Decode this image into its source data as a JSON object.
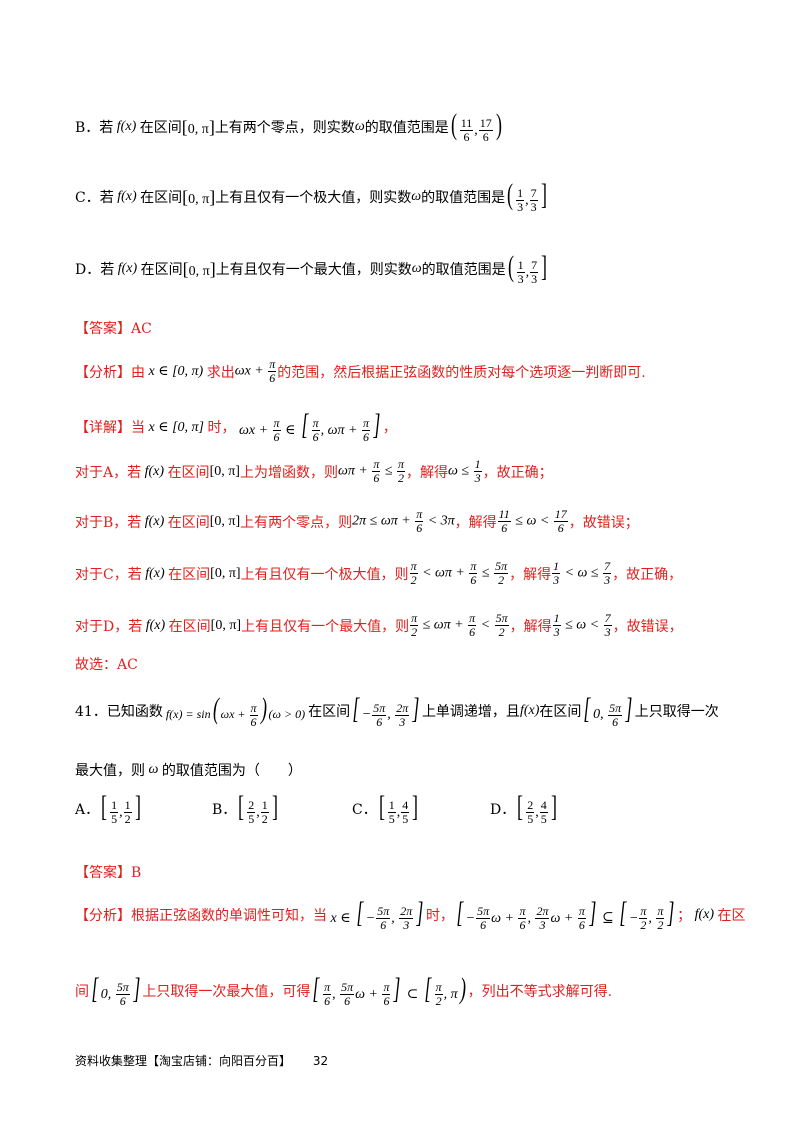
{
  "lineB": {
    "p1": "B．若",
    "p2": "在区间",
    "p3": "上有两个零点，则实数",
    "p4": "的取值范围是"
  },
  "lineC": {
    "p1": "C．若",
    "p2": "在区间",
    "p3": "上有且仅有一个极大值，则实数",
    "p4": "的取值范围是"
  },
  "lineD": {
    "p1": "D．若",
    "p2": "在区间",
    "p3": "上有且仅有一个最大值，则实数",
    "p4": "的取值范围是"
  },
  "answer1": "【答案】AC",
  "analysis1": {
    "label": "【分析】",
    "p1": "由",
    "p2": "求出",
    "p3": "的范围，然后根据正弦函数的性质对每个选项逐一判断即可."
  },
  "detail1": {
    "label": "【详解】",
    "p1": "当",
    "p2": "时，"
  },
  "forA": {
    "p1": "对于A，若",
    "p2": "在区间",
    "p3": "上为增函数，则",
    "p4": "，解得",
    "p5": "，故正确；"
  },
  "forB": {
    "p1": "对于B，若",
    "p2": "在区间",
    "p3": "上有两个零点，则",
    "p4": "，解得",
    "p5": "，故错误；"
  },
  "forC": {
    "p1": "对于C，若",
    "p2": "在区间",
    "p3": "上有且仅有一个极大值，则",
    "p4": "，解得",
    "p5": "，故正确，"
  },
  "forD": {
    "p1": "对于D，若",
    "p2": "在区间",
    "p3": "上有且仅有一个最大值，则",
    "p4": "，解得",
    "p5": "，故错误，"
  },
  "choose1": "故选：AC",
  "q41": {
    "p1": "41．已知函数",
    "p2": "在区间",
    "p3": "上单调递增，且",
    "p4": "在区间",
    "p5": "上只取得一次"
  },
  "q41b": {
    "p1": "最大值，则",
    "p2": "的取值范围为（　　）"
  },
  "options": {
    "a": "A．",
    "b": "B．",
    "c": "C．",
    "d": "D．"
  },
  "answer2": "【答案】B",
  "analysis2": {
    "label": "【分析】",
    "p1": "根据正弦函数的单调性可知，当",
    "p2": "时，",
    "p3": "；",
    "p4": "在区"
  },
  "analysis2b": {
    "p1": "间",
    "p2": "上只取得一次最大值，可得",
    "p3": "，列出不等式求解可得."
  },
  "footer": {
    "text": "资料收集整理【淘宝店铺：向阳百分百】",
    "page": "32"
  }
}
